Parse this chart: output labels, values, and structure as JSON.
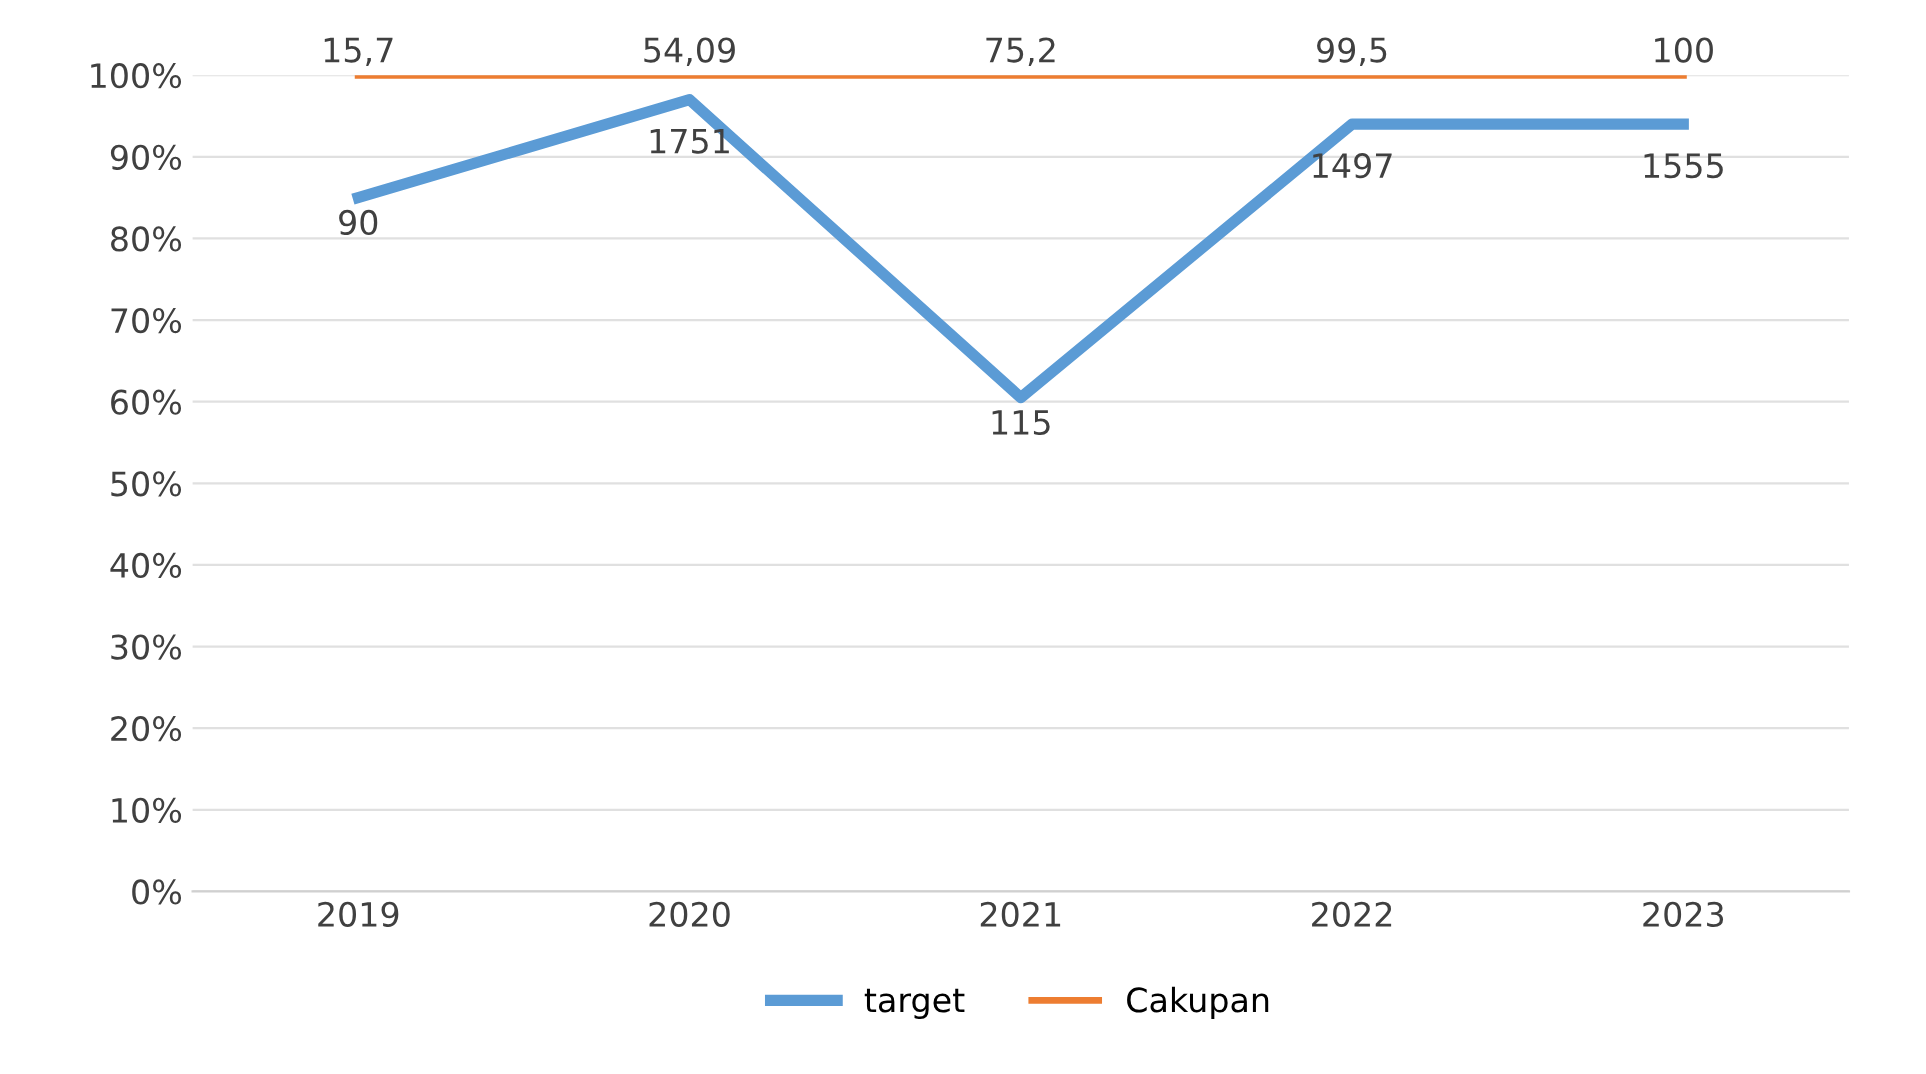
{
  "chart_data": {
    "type": "line",
    "categories": [
      "2019",
      "2020",
      "2021",
      "2022",
      "2023"
    ],
    "series": [
      {
        "name": "target",
        "color": "#5b9bd5",
        "values": [
          85,
          97,
          60.5,
          94,
          94
        ]
      },
      {
        "name": "Cakupan",
        "color": "#ed7d31",
        "values": [
          100,
          100,
          100,
          100,
          100
        ]
      }
    ],
    "annotations": [
      {
        "text": "90",
        "x": "2019",
        "y": 85
      },
      {
        "text": "1751",
        "x": "2020",
        "y": 97
      },
      {
        "text": "115",
        "x": "2021",
        "y": 60.5
      },
      {
        "text": "1497",
        "x": "2022",
        "y": 94
      },
      {
        "text": "1555",
        "x": "2023",
        "y": 94
      },
      {
        "text": "15,7",
        "x": "2019",
        "y": 100
      },
      {
        "text": "54,09",
        "x": "2020",
        "y": 100
      },
      {
        "text": "75,2",
        "x": "2021",
        "y": 100
      },
      {
        "text": "99,5",
        "x": "2022",
        "y": 100
      },
      {
        "text": "100",
        "x": "2023",
        "y": 100
      }
    ],
    "ylim": [
      0,
      100
    ],
    "yticks": [
      {
        "value": 0,
        "label": "0%"
      },
      {
        "value": 10,
        "label": "10%"
      },
      {
        "value": 20,
        "label": "20%"
      },
      {
        "value": 30,
        "label": "30%"
      },
      {
        "value": 40,
        "label": "40%"
      },
      {
        "value": 50,
        "label": "50%"
      },
      {
        "value": 60,
        "label": "60%"
      },
      {
        "value": 70,
        "label": "70%"
      },
      {
        "value": 80,
        "label": "80%"
      },
      {
        "value": 90,
        "label": "90%"
      },
      {
        "value": 100,
        "label": "100%"
      }
    ],
    "grid": "y",
    "legend": "bottom",
    "marker": "none",
    "line_style": "solid"
  }
}
